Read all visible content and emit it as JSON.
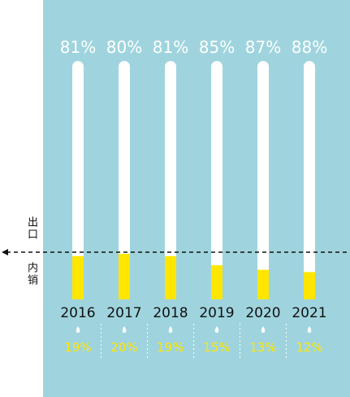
{
  "side_labels": {
    "export": "出口",
    "domestic": "内销"
  },
  "colors": {
    "panel_bg": "#9fd4de",
    "bar_track": "#ffffff",
    "bar_fill": "#ffe600",
    "pct_top": "#ffffff",
    "pct_bottom": "#ffe600",
    "year": "#111111",
    "dashed_line": "#111111",
    "droplet": "#ffffff"
  },
  "chart_data": {
    "type": "bar",
    "categories": [
      "2016",
      "2017",
      "2018",
      "2019",
      "2020",
      "2021"
    ],
    "series": [
      {
        "name": "出口",
        "values": [
          81,
          80,
          81,
          85,
          87,
          88
        ],
        "labels": [
          "81%",
          "80%",
          "81%",
          "85%",
          "87%",
          "88%"
        ]
      },
      {
        "name": "内销",
        "values": [
          19,
          20,
          19,
          15,
          13,
          12
        ],
        "labels": [
          "19%",
          "20%",
          "19%",
          "15%",
          "13%",
          "12%"
        ]
      }
    ],
    "stacked": true,
    "ylim": [
      0,
      100
    ],
    "title": "",
    "xlabel": "",
    "ylabel": "",
    "legend": "left"
  }
}
